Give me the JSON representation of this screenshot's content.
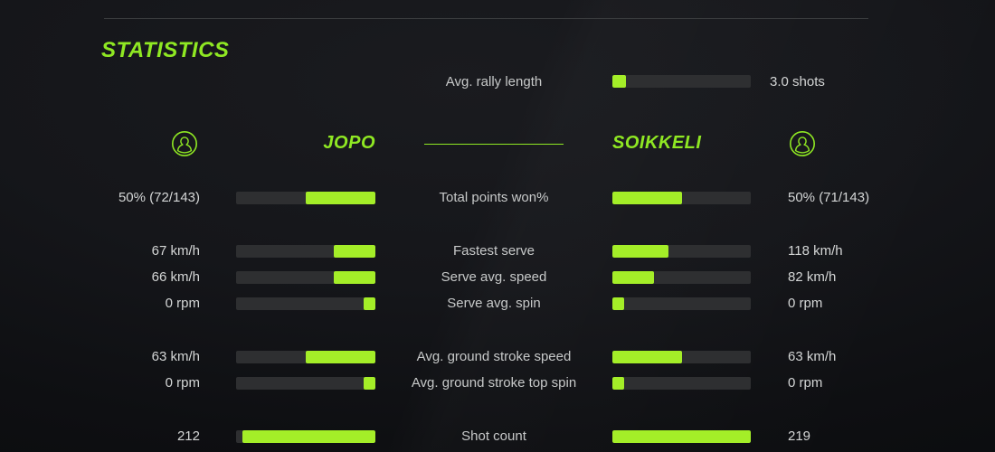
{
  "title": "STATISTICS",
  "colors": {
    "accent_text": "#8fe823",
    "accent_bar": "#a4ee28",
    "bar_track": "#2e2f31",
    "label_gray": "#c7c9c9",
    "value_gray": "#d4d6d6"
  },
  "overview": {
    "label": "Avg. rally length",
    "value": "3.0 shots",
    "fill_pct": 10
  },
  "players": {
    "left": {
      "name": "JOPO"
    },
    "right": {
      "name": "SOIKKELI"
    }
  },
  "stats": [
    {
      "label": "Total points won%",
      "left_value": "50% (72/143)",
      "left_pct": 50,
      "right_value": "50% (71/143)",
      "right_pct": 50
    },
    {
      "label": "Fastest serve",
      "left_value": "67 km/h",
      "left_pct": 30,
      "right_value": "118 km/h",
      "right_pct": 40.5
    },
    {
      "label": "Serve avg. speed",
      "left_value": "66 km/h",
      "left_pct": 30,
      "right_value": "82 km/h",
      "right_pct": 30
    },
    {
      "label": "Serve avg. spin",
      "left_value": "0 rpm",
      "left_pct": 8.5,
      "right_value": "0 rpm",
      "right_pct": 8.5
    },
    {
      "label": "Avg. ground stroke speed",
      "left_value": "63 km/h",
      "left_pct": 50,
      "right_value": "63 km/h",
      "right_pct": 50
    },
    {
      "label": "Avg. ground stroke top spin",
      "left_value": "0 rpm",
      "left_pct": 8.5,
      "right_value": "0 rpm",
      "right_pct": 8.5
    },
    {
      "label": "Shot count",
      "left_value": "212",
      "left_pct": 95.5,
      "right_value": "219",
      "right_pct": 100
    }
  ]
}
